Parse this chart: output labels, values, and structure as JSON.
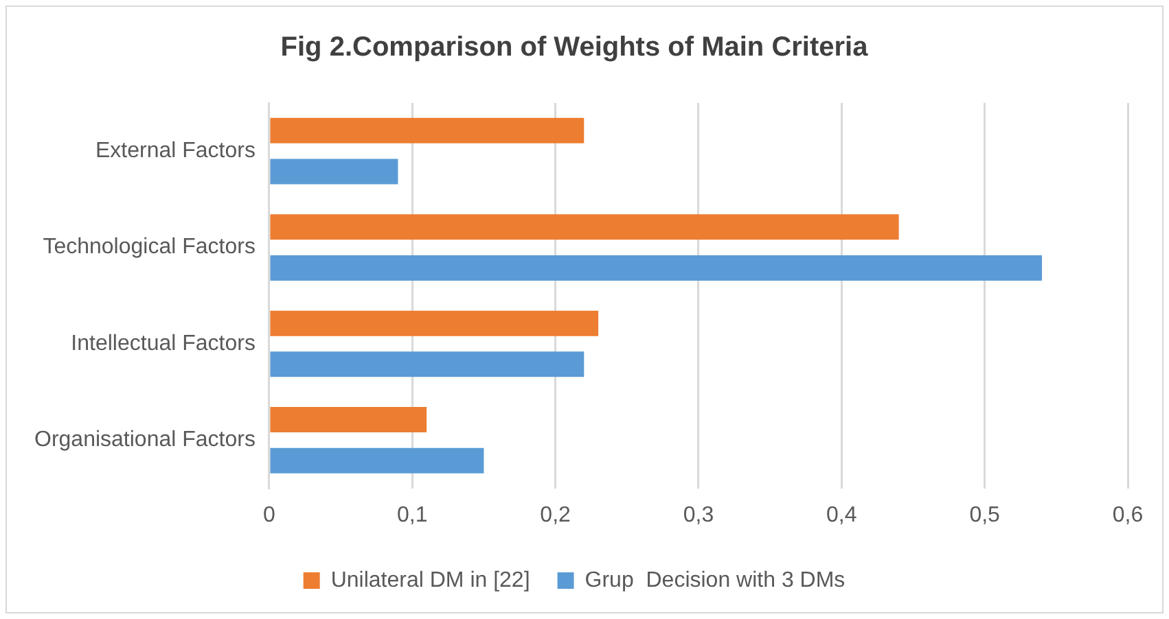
{
  "chart_data": {
    "type": "bar",
    "orientation": "horizontal",
    "title": "Fig 2.Comparison of Weights of Main Criteria",
    "categories": [
      "External Factors",
      "Technological Factors",
      "Intellectual Factors",
      "Organisational Factors"
    ],
    "series": [
      {
        "name": "Unilateral DM in [22]",
        "color": "#ed7d31",
        "values": [
          0.22,
          0.44,
          0.23,
          0.11
        ]
      },
      {
        "name": "Grup  Decision with 3 DMs",
        "color": "#5b9bd5",
        "values": [
          0.09,
          0.54,
          0.22,
          0.15
        ]
      }
    ],
    "xlim": [
      0,
      0.6
    ],
    "xticks": [
      0,
      {
        "value": 0.1,
        "label": "0,1"
      },
      {
        "value": 0.2,
        "label": "0,2"
      },
      {
        "value": 0.3,
        "label": "0,3"
      },
      {
        "value": 0.4,
        "label": "0,4"
      },
      {
        "value": 0.5,
        "label": "0,5"
      },
      {
        "value": 0.6,
        "label": "0,6"
      }
    ],
    "grid": "x",
    "legend": "bottom"
  }
}
